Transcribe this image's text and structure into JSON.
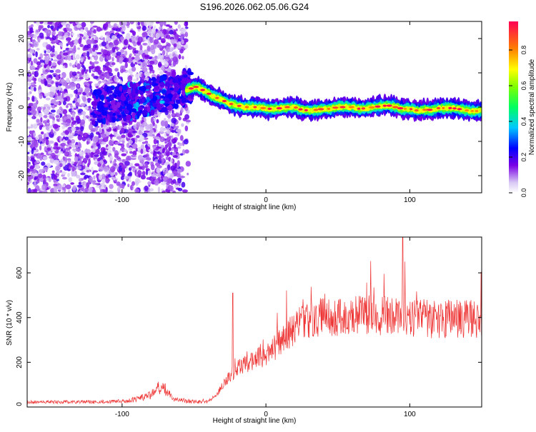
{
  "title": "S196.2026.062.05.06.G24",
  "chart_data": [
    {
      "type": "heatmap",
      "xlabel": "Height of straight line (km)",
      "ylabel": "Frequency (Hz)",
      "xlim": [
        -166,
        150
      ],
      "ylim": [
        -25,
        25
      ],
      "x_ticks": [
        "-100",
        "0",
        "100"
      ],
      "y_ticks": [
        "20",
        "10",
        "0",
        "-10",
        "-20"
      ],
      "colorbar": {
        "label": "Normalized spectral amplitude",
        "range": [
          0,
          0.96
        ],
        "ticks": [
          "0.0",
          "0.2",
          "0.4",
          "0.6",
          "0.8"
        ]
      },
      "ridge": {
        "x": [
          -55,
          -48,
          -42,
          -36,
          -30,
          -25,
          -20,
          -15,
          -10,
          -5,
          0,
          5,
          10,
          15,
          20,
          25,
          30,
          35,
          40,
          45,
          50,
          55,
          60,
          65,
          70,
          75,
          80,
          85,
          90,
          95,
          100,
          105,
          110,
          115,
          120,
          125,
          130,
          135,
          140,
          145,
          150
        ],
        "y": [
          5,
          6,
          4.5,
          3,
          2,
          1,
          0.5,
          0,
          0,
          0,
          -0.5,
          -0.5,
          -0.3,
          0,
          0,
          -0.8,
          -1,
          -0.8,
          -0.5,
          -0.5,
          0,
          0,
          0,
          -0.5,
          -0.3,
          0,
          0.3,
          0.5,
          0,
          -0.5,
          -0.5,
          -1,
          -0.8,
          -0.8,
          -0.3,
          -0.3,
          -0.3,
          -0.6,
          -1,
          -1.2,
          -1
        ]
      }
    },
    {
      "type": "line",
      "xlabel": "Height of straight line (km)",
      "ylabel": "SNR (10 * v/v)",
      "xlim": [
        -166,
        150
      ],
      "ylim": [
        0,
        760
      ],
      "x_ticks": [
        "-100",
        "0",
        "100"
      ],
      "y_ticks": [
        "0",
        "200",
        "400",
        "600"
      ],
      "series_color": "#ee3333",
      "envelope": {
        "x": [
          -166,
          -140,
          -120,
          -100,
          -90,
          -80,
          -75,
          -70,
          -65,
          -60,
          -50,
          -45,
          -40,
          -35,
          -30,
          -25,
          -20,
          -15,
          -10,
          -5,
          0,
          5,
          10,
          15,
          20,
          25,
          30,
          35,
          40,
          50,
          60,
          70,
          80,
          90,
          100,
          110,
          120,
          130,
          140,
          150
        ],
        "y": [
          22,
          22,
          24,
          25,
          35,
          55,
          85,
          80,
          40,
          30,
          25,
          22,
          25,
          50,
          100,
          140,
          170,
          190,
          200,
          220,
          230,
          260,
          290,
          320,
          350,
          375,
          390,
          400,
          400,
          405,
          410,
          410,
          410,
          400,
          395,
          395,
          390,
          395,
          395,
          390
        ]
      }
    }
  ]
}
